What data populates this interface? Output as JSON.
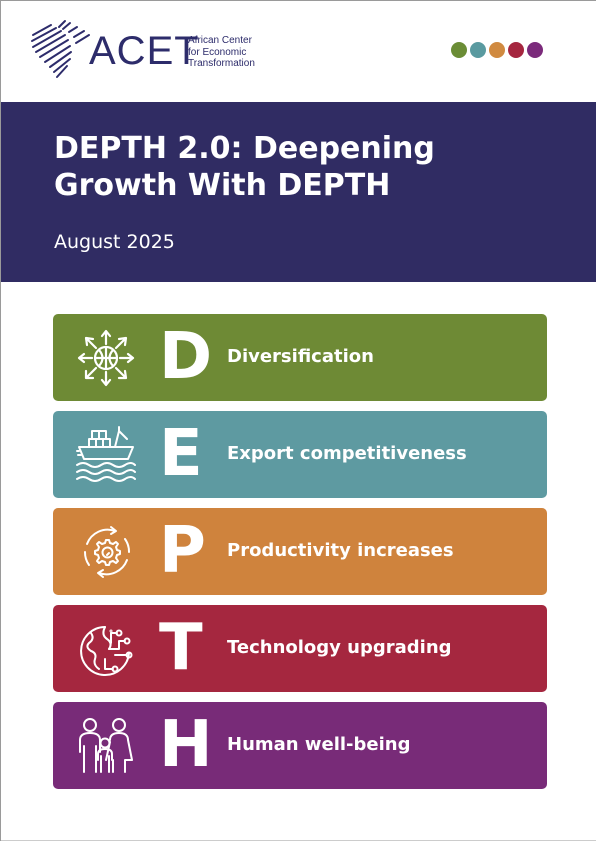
{
  "header": {
    "logo": {
      "name": "ACET",
      "subtitle_lines": [
        "African Center",
        "for Economic",
        "Transformation"
      ]
    },
    "dots": [
      "#6b8d36",
      "#5a9aa0",
      "#d08a40",
      "#a5263f",
      "#7b2a7b"
    ]
  },
  "banner": {
    "title_line1": "DEPTH 2.0: Deepening",
    "title_line2": "Growth With DEPTH",
    "date": "August 2025",
    "background": "#302c63"
  },
  "pillars": [
    {
      "letter": "D",
      "label": "Diversification",
      "color": "#6e8a35",
      "icon": "diversification-globe-arrows-icon"
    },
    {
      "letter": "E",
      "label": "Export competitiveness",
      "color": "#5e9aa1",
      "icon": "cargo-ship-icon"
    },
    {
      "letter": "P",
      "label": "Productivity increases",
      "color": "#cf833d",
      "icon": "gear-cycle-icon"
    },
    {
      "letter": "T",
      "label": "Technology upgrading",
      "color": "#a5273f",
      "icon": "globe-circuit-icon"
    },
    {
      "letter": "H",
      "label": "Human well-being",
      "color": "#782b78",
      "icon": "family-people-icon"
    }
  ]
}
